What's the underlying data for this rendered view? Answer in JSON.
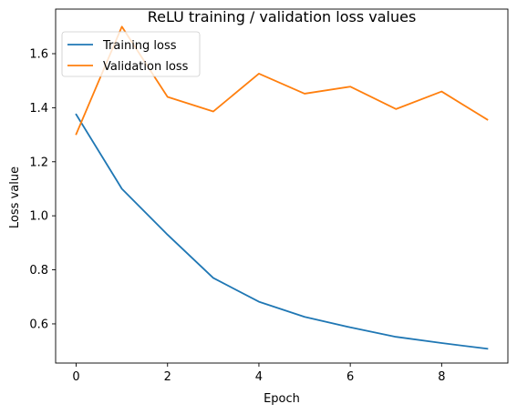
{
  "chart_data": {
    "type": "line",
    "title": "ReLU training / validation loss values",
    "xlabel": "Epoch",
    "ylabel": "Loss value",
    "x": [
      0,
      1,
      2,
      3,
      4,
      5,
      6,
      7,
      8,
      9
    ],
    "xlim": [
      -0.45,
      9.45
    ],
    "ylim": [
      0.455,
      1.765
    ],
    "xticks": [
      0,
      2,
      4,
      6,
      8
    ],
    "yticks": [
      0.6,
      0.8,
      1.0,
      1.2,
      1.4,
      1.6
    ],
    "xtick_labels": [
      "0",
      "2",
      "4",
      "6",
      "8"
    ],
    "ytick_labels": [
      "0.6",
      "0.8",
      "1.0",
      "1.2",
      "1.4",
      "1.6"
    ],
    "grid": false,
    "legend_position": "upper-left",
    "series": [
      {
        "name": "Training loss",
        "color": "#1f77b4",
        "values": [
          1.375,
          1.1,
          0.93,
          0.77,
          0.682,
          0.626,
          0.587,
          0.552,
          0.529,
          0.508
        ]
      },
      {
        "name": "Validation loss",
        "color": "#ff7f0e",
        "values": [
          1.302,
          1.7,
          1.44,
          1.386,
          1.526,
          1.452,
          1.478,
          1.395,
          1.46,
          1.356
        ]
      }
    ]
  }
}
